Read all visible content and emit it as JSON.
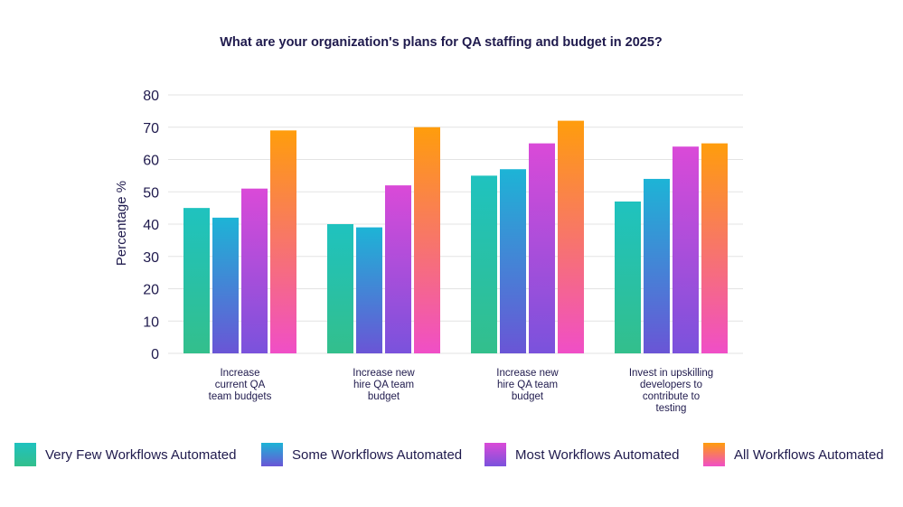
{
  "chart_data": {
    "type": "bar",
    "title": "What are your organization's plans for QA staffing and budget in 2025?",
    "xlabel": "",
    "ylabel": "Percentage %",
    "ylim": [
      0,
      80
    ],
    "yticks": [
      0,
      10,
      20,
      30,
      40,
      50,
      60,
      70,
      80
    ],
    "grid": true,
    "legend_position": "bottom",
    "categories": [
      [
        "Increase",
        "current QA",
        "team budgets"
      ],
      [
        "Increase new",
        "hire QA team",
        "budget"
      ],
      [
        "Increase new",
        "hire QA team",
        "budget"
      ],
      [
        "Invest in upskilling",
        "developers to",
        "contribute to",
        "testing"
      ]
    ],
    "series": [
      {
        "name": "Very Few Workflows Automated",
        "values": [
          45,
          40,
          55,
          47
        ],
        "color_top": "#1fc2bf",
        "color_bottom": "#33bf8c"
      },
      {
        "name": "Some Workflows Automated",
        "values": [
          42,
          39,
          57,
          54
        ],
        "color_top": "#1db4d6",
        "color_bottom": "#6a55d6"
      },
      {
        "name": "Most Workflows Automated",
        "values": [
          51,
          52,
          65,
          64
        ],
        "color_top": "#da4ad8",
        "color_bottom": "#7a52dc"
      },
      {
        "name": "All Workflows Automated",
        "values": [
          69,
          70,
          72,
          65
        ],
        "color_top": "#ff9d0c",
        "color_bottom": "#f04ec7"
      }
    ]
  }
}
